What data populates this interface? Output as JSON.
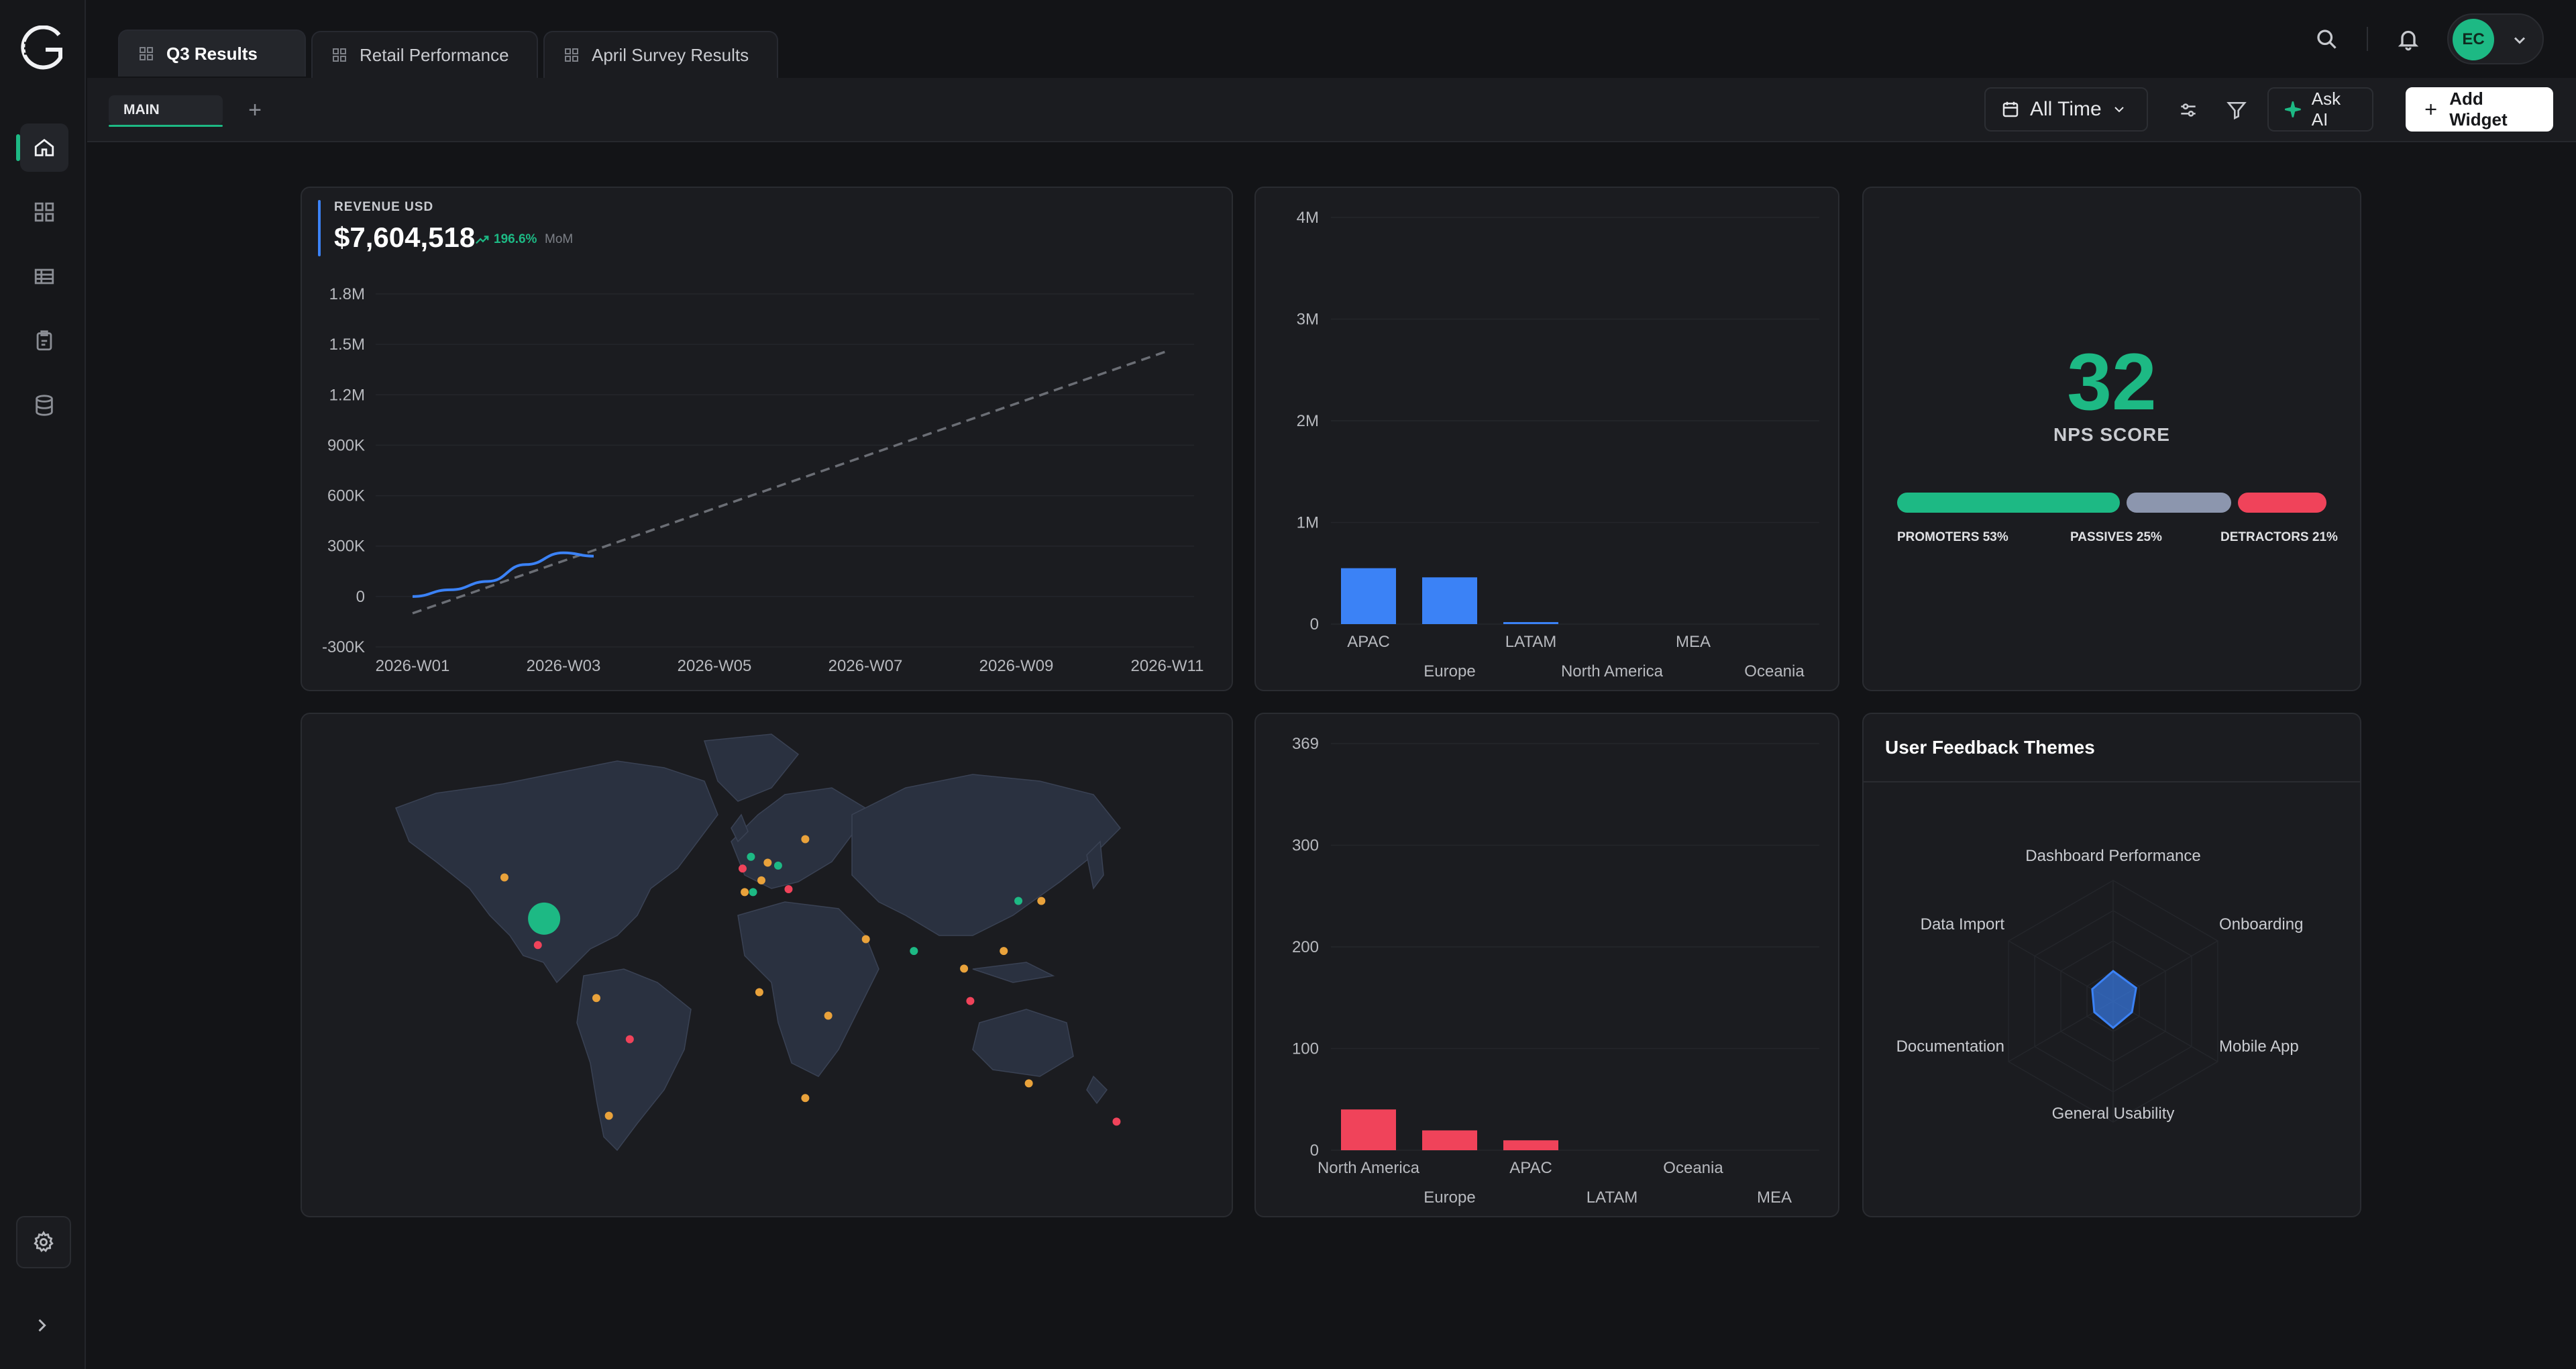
{
  "sidebar": {
    "logo_icon": "logo-icon",
    "items": [
      {
        "name": "home",
        "icon": "home-icon",
        "active": true
      },
      {
        "name": "dashboards",
        "icon": "grid-icon",
        "active": false
      },
      {
        "name": "tables",
        "icon": "table-icon",
        "active": false
      },
      {
        "name": "surveys",
        "icon": "clipboard-icon",
        "active": false
      },
      {
        "name": "data-sources",
        "icon": "database-icon",
        "active": false
      }
    ],
    "settings_icon": "gear-icon",
    "expand_icon": "chevron-right-icon"
  },
  "tabs": [
    {
      "label": "Q3 Results",
      "active": true
    },
    {
      "label": "Retail Performance",
      "active": false
    },
    {
      "label": "April Survey Results",
      "active": false
    }
  ],
  "header": {
    "user_initials": "EC"
  },
  "toolbar": {
    "subtab_label": "MAIN",
    "add_subtab": "+",
    "time_range": "All Time",
    "ask_ai_label": "Ask AI",
    "add_widget_label": "Add Widget"
  },
  "revenue_card": {
    "label": "REVENUE USD",
    "value": "$7,604,518",
    "change": "196.6%",
    "change_period": "MoM"
  },
  "nps_card": {
    "score": "32",
    "title": "NPS SCORE",
    "promoters_pct": 53,
    "passives_pct": 25,
    "detractors_pct": 21,
    "promoters_label": "PROMOTERS 53%",
    "passives_label": "PASSIVES 25%",
    "detractors_label": "DETRACTORS 21%",
    "colors": {
      "promoters": "#1db984",
      "passives": "#8c96ae",
      "detractors": "#f0435a"
    }
  },
  "feedback_card": {
    "title": "User Feedback Themes"
  },
  "chart_data": [
    {
      "type": "line",
      "x_ticks": [
        "2026-W01",
        "2026-W03",
        "2026-W05",
        "2026-W07",
        "2026-W09",
        "2026-W11"
      ],
      "y_ticks": [
        "1.8M",
        "1.5M",
        "1.2M",
        "900K",
        "600K",
        "300K",
        "0",
        "-300K"
      ],
      "ylim": [
        -300000,
        1800000
      ],
      "series": [
        {
          "x": [
            1,
            1.5,
            2,
            2.5,
            3,
            3.4
          ],
          "values": [
            0,
            40000,
            90000,
            190000,
            260000,
            240000
          ],
          "color": "#3b82f6"
        }
      ],
      "trend": {
        "x": [
          1,
          11
        ],
        "values": [
          -100000,
          1460000
        ],
        "color": "#6b6e75",
        "dashed": true
      }
    },
    {
      "type": "bar",
      "categories": [
        "APAC",
        "Europe",
        "LATAM",
        "North America",
        "MEA",
        "Oceania"
      ],
      "values": [
        550000,
        460000,
        20000,
        0,
        0,
        0
      ],
      "y_ticks": [
        "4M",
        "3M",
        "2M",
        "1M",
        "0"
      ],
      "ylim": [
        0,
        4000000
      ],
      "color": "#3b82f6"
    },
    {
      "type": "bar",
      "categories": [
        "North America",
        "Europe",
        "APAC",
        "LATAM",
        "Oceania",
        "MEA"
      ],
      "values": [
        37,
        18,
        9,
        0,
        0,
        0
      ],
      "y_ticks": [
        "369",
        "300",
        "200",
        "100",
        "0"
      ],
      "ylim": [
        0,
        369
      ],
      "color": "#f0435a"
    },
    {
      "type": "radar",
      "axes": [
        "Dashboard Performance",
        "Onboarding",
        "Mobile App",
        "General Usability",
        "Documentation",
        "Data Import"
      ],
      "values": [
        0.25,
        0.22,
        0.18,
        0.22,
        0.18,
        0.2
      ],
      "color": "#3b82f6"
    }
  ],
  "map_points": [
    {
      "lon": -99,
      "lat": 31,
      "size": "large",
      "color": "#1db984"
    },
    {
      "lon": -118,
      "lat": 45,
      "size": "small",
      "color": "#e9a23b"
    },
    {
      "lon": -102,
      "lat": 22,
      "size": "small",
      "color": "#f0435a"
    },
    {
      "lon": -74,
      "lat": 4,
      "size": "small",
      "color": "#e9a23b"
    },
    {
      "lon": -58,
      "lat": -10,
      "size": "small",
      "color": "#f0435a"
    },
    {
      "lon": -68,
      "lat": -36,
      "size": "small",
      "color": "#e9a23b"
    },
    {
      "lon": 0,
      "lat": 52,
      "size": "small",
      "color": "#1db984"
    },
    {
      "lon": -4,
      "lat": 48,
      "size": "small",
      "color": "#f0435a"
    },
    {
      "lon": 8,
      "lat": 50,
      "size": "small",
      "color": "#e9a23b"
    },
    {
      "lon": 13,
      "lat": 49,
      "size": "small",
      "color": "#1db984"
    },
    {
      "lon": 5,
      "lat": 44,
      "size": "small",
      "color": "#e9a23b"
    },
    {
      "lon": -3,
      "lat": 40,
      "size": "small",
      "color": "#e9a23b"
    },
    {
      "lon": 1,
      "lat": 40,
      "size": "small",
      "color": "#1db984"
    },
    {
      "lon": 18,
      "lat": 41,
      "size": "small",
      "color": "#f0435a"
    },
    {
      "lon": 26,
      "lat": 58,
      "size": "small",
      "color": "#e9a23b"
    },
    {
      "lon": 55,
      "lat": 24,
      "size": "small",
      "color": "#e9a23b"
    },
    {
      "lon": 78,
      "lat": 20,
      "size": "small",
      "color": "#1db984"
    },
    {
      "lon": 102,
      "lat": 14,
      "size": "small",
      "color": "#e9a23b"
    },
    {
      "lon": 105,
      "lat": 3,
      "size": "small",
      "color": "#f0435a"
    },
    {
      "lon": 121,
      "lat": 20,
      "size": "small",
      "color": "#e9a23b"
    },
    {
      "lon": 128,
      "lat": 37,
      "size": "small",
      "color": "#1db984"
    },
    {
      "lon": 139,
      "lat": 37,
      "size": "small",
      "color": "#e9a23b"
    },
    {
      "lon": 4,
      "lat": 6,
      "size": "small",
      "color": "#e9a23b"
    },
    {
      "lon": 37,
      "lat": -2,
      "size": "small",
      "color": "#e9a23b"
    },
    {
      "lon": 26,
      "lat": -30,
      "size": "small",
      "color": "#e9a23b"
    },
    {
      "lon": 133,
      "lat": -25,
      "size": "small",
      "color": "#e9a23b"
    },
    {
      "lon": 175,
      "lat": -38,
      "size": "small",
      "color": "#f0435a"
    }
  ]
}
